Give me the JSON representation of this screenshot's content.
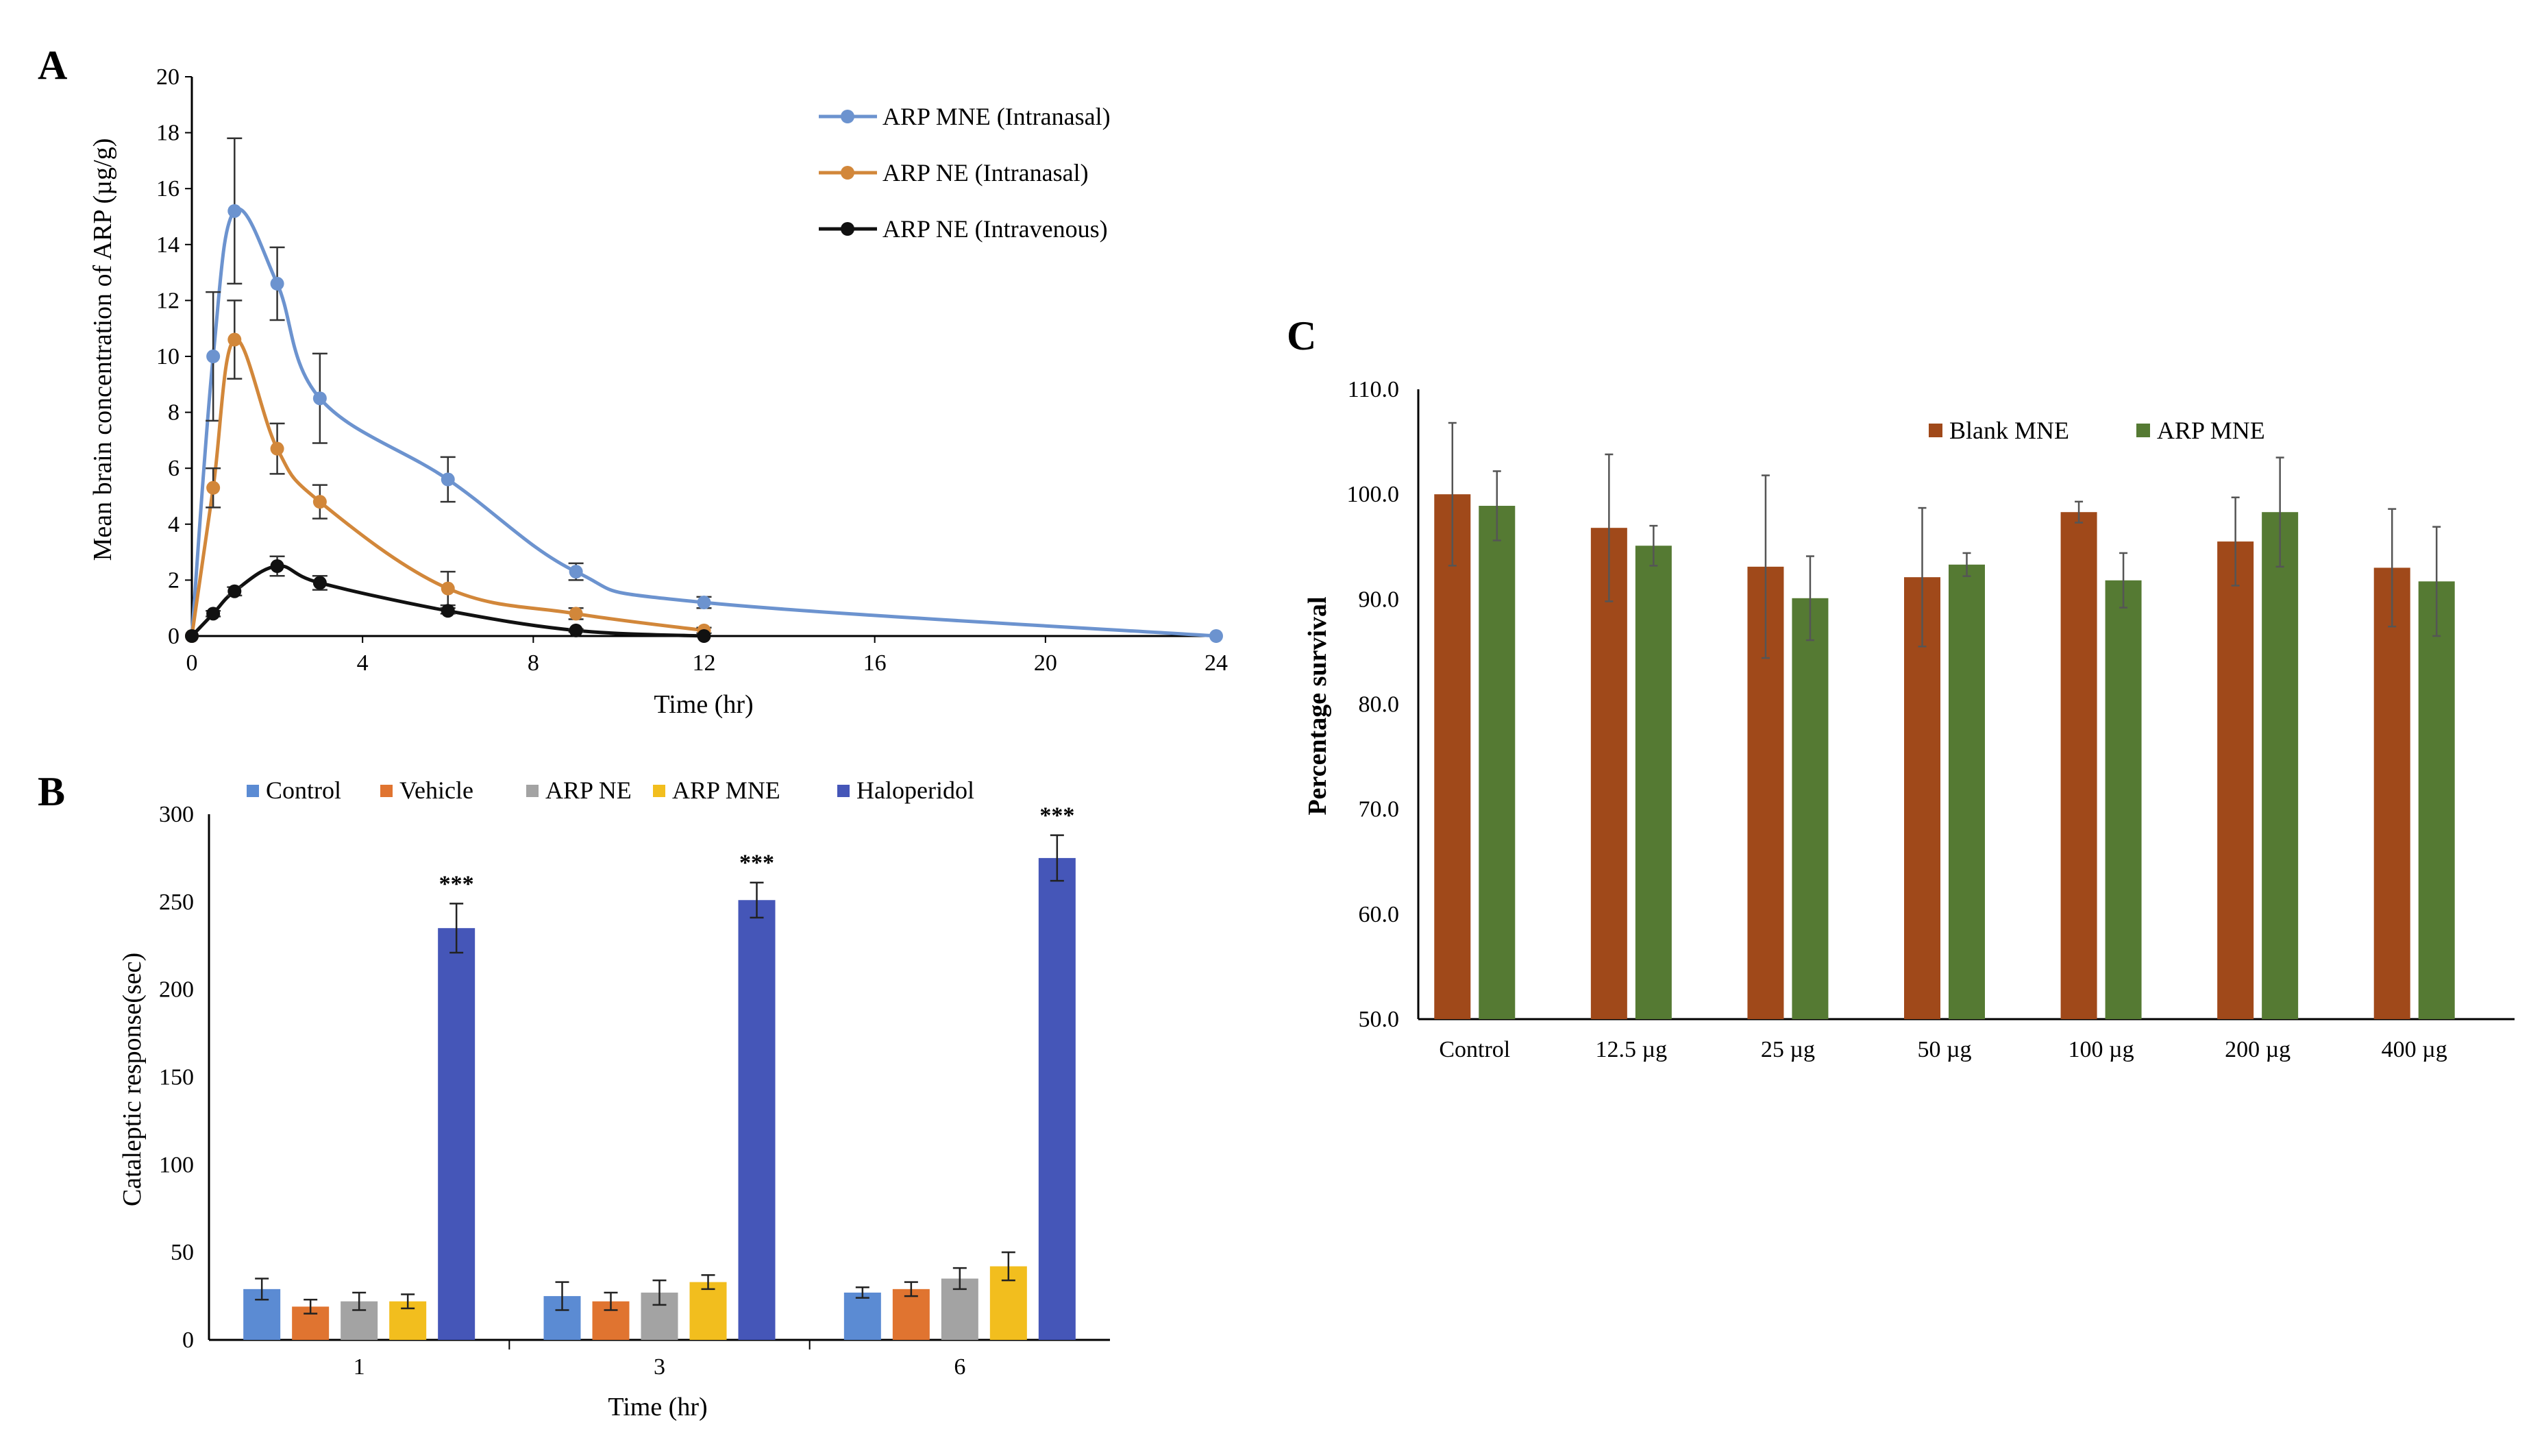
{
  "chart_data": [
    {
      "panel": "A",
      "type": "line",
      "xlabel": "Time (hr)",
      "ylabel": "Mean brain concentration of ARP (µg/g)",
      "xlim": [
        0,
        24
      ],
      "ylim": [
        0,
        20
      ],
      "xticks": [
        0,
        4,
        8,
        12,
        16,
        20,
        24
      ],
      "yticks": [
        0,
        2,
        4,
        6,
        8,
        10,
        12,
        14,
        16,
        18,
        20
      ],
      "legend_position": "top-right",
      "series": [
        {
          "name": "ARP MNE (Intranasal)",
          "color": "#6C93CF",
          "x": [
            0,
            0.5,
            1,
            2,
            3,
            6,
            9,
            12,
            24
          ],
          "y": [
            0,
            10,
            15.2,
            12.6,
            8.5,
            5.6,
            2.3,
            1.2,
            0
          ],
          "err": [
            0,
            2.3,
            2.6,
            1.3,
            1.6,
            0.8,
            0.3,
            0.2,
            0
          ]
        },
        {
          "name": "ARP NE (Intranasal)",
          "color": "#D2873A",
          "x": [
            0,
            0.5,
            1,
            2,
            3,
            6,
            9,
            12
          ],
          "y": [
            0,
            5.3,
            10.6,
            6.7,
            4.8,
            1.7,
            0.8,
            0.2
          ],
          "err": [
            0,
            0.7,
            1.4,
            0.9,
            0.6,
            0.6,
            0.2,
            0.1
          ]
        },
        {
          "name": "ARP NE (Intravenous)",
          "color": "#111111",
          "x": [
            0,
            0.5,
            1,
            2,
            3,
            6,
            9,
            12
          ],
          "y": [
            0,
            0.8,
            1.6,
            2.5,
            1.9,
            0.9,
            0.2,
            0
          ],
          "err": [
            0,
            0.1,
            0.15,
            0.35,
            0.25,
            0.1,
            0.05,
            0
          ]
        }
      ]
    },
    {
      "panel": "B",
      "type": "bar",
      "xlabel": "Time (hr)",
      "ylabel": "Cataleptic response(sec)",
      "ylim": [
        0,
        300
      ],
      "yticks": [
        0,
        50,
        100,
        150,
        200,
        250,
        300
      ],
      "legend_position": "top",
      "categories": [
        "1",
        "3",
        "6"
      ],
      "annotation": "***",
      "annotated_series": "Haloperidol",
      "series": [
        {
          "name": "Control",
          "color": "#5B8BD3",
          "values": [
            29,
            25,
            27
          ],
          "err": [
            6,
            8,
            3
          ]
        },
        {
          "name": "Vehicle",
          "color": "#E07430",
          "values": [
            19,
            22,
            29
          ],
          "err": [
            4,
            5,
            4
          ]
        },
        {
          "name": "ARP NE",
          "color": "#A3A3A3",
          "values": [
            22,
            27,
            35
          ],
          "err": [
            5,
            7,
            6
          ]
        },
        {
          "name": "ARP MNE",
          "color": "#F2BE1E",
          "values": [
            22,
            33,
            42
          ],
          "err": [
            4,
            4,
            8
          ]
        },
        {
          "name": "Haloperidol",
          "color": "#4556B8",
          "values": [
            235,
            251,
            275
          ],
          "err": [
            14,
            10,
            13
          ]
        }
      ]
    },
    {
      "panel": "C",
      "type": "bar",
      "xlabel": "",
      "ylabel": "Percentage survival",
      "ylim": [
        50,
        110
      ],
      "yticks": [
        "50.0",
        "60.0",
        "70.0",
        "80.0",
        "90.0",
        "100.0",
        "110.0"
      ],
      "legend_position": "top-right",
      "categories": [
        "Control",
        "12.5 µg",
        "25 µg",
        "50 µg",
        "100 µg",
        "200 µg",
        "400 µg"
      ],
      "series": [
        {
          "name": "Blank MNE",
          "color": "#A0491A",
          "values": [
            100,
            96.8,
            93.1,
            92.1,
            98.3,
            95.5,
            93.0
          ],
          "err": [
            6.8,
            7.0,
            8.7,
            6.6,
            1.0,
            4.2,
            5.6
          ]
        },
        {
          "name": "ARP MNE",
          "color": "#557A33",
          "values": [
            98.9,
            95.1,
            90.1,
            93.3,
            91.8,
            98.3,
            91.7
          ],
          "err": [
            3.3,
            1.9,
            4.0,
            1.1,
            2.6,
            5.2,
            5.2
          ]
        }
      ]
    }
  ]
}
